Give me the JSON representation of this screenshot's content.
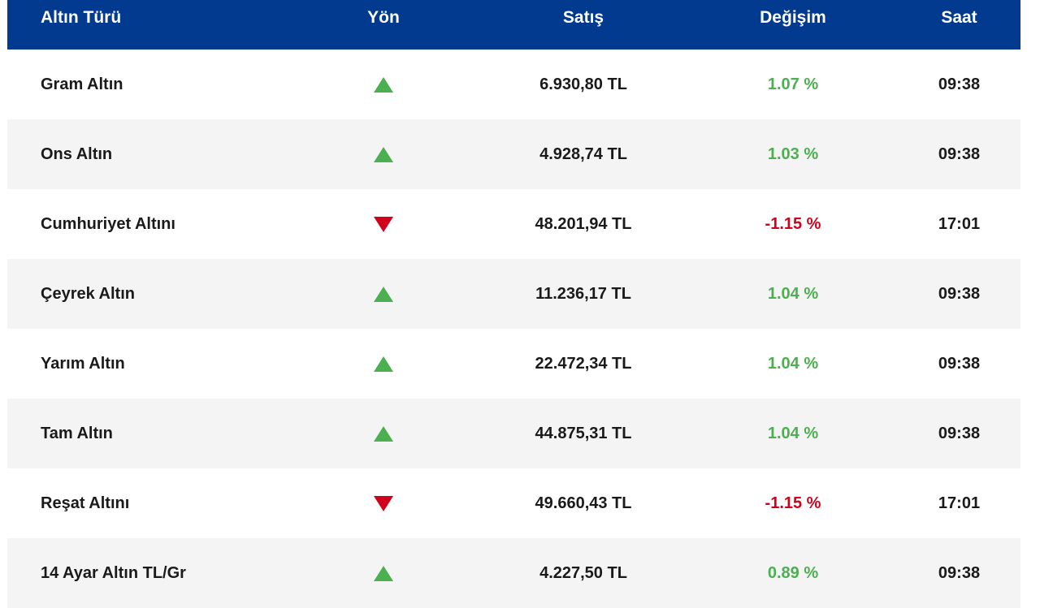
{
  "headers": {
    "name": "Altın Türü",
    "direction": "Yön",
    "price": "Satış",
    "change": "Değişim",
    "time": "Saat"
  },
  "colors": {
    "header_bg": "#023a8f",
    "up": "#4caf50",
    "down": "#d0021b"
  },
  "rows": [
    {
      "name": "Gram Altın",
      "direction": "up",
      "price": "6.930,80 TL",
      "change": "1.07 %",
      "time": "09:38"
    },
    {
      "name": "Ons Altın",
      "direction": "up",
      "price": "4.928,74 TL",
      "change": "1.03 %",
      "time": "09:38"
    },
    {
      "name": "Cumhuriyet Altını",
      "direction": "down",
      "price": "48.201,94 TL",
      "change": "-1.15 %",
      "time": "17:01"
    },
    {
      "name": "Çeyrek Altın",
      "direction": "up",
      "price": "11.236,17 TL",
      "change": "1.04 %",
      "time": "09:38"
    },
    {
      "name": "Yarım Altın",
      "direction": "up",
      "price": "22.472,34 TL",
      "change": "1.04 %",
      "time": "09:38"
    },
    {
      "name": "Tam Altın",
      "direction": "up",
      "price": "44.875,31 TL",
      "change": "1.04 %",
      "time": "09:38"
    },
    {
      "name": "Reşat Altını",
      "direction": "down",
      "price": "49.660,43 TL",
      "change": "-1.15 %",
      "time": "17:01"
    },
    {
      "name": "14 Ayar Altın TL/Gr",
      "direction": "up",
      "price": "4.227,50 TL",
      "change": "0.89 %",
      "time": "09:38"
    }
  ]
}
